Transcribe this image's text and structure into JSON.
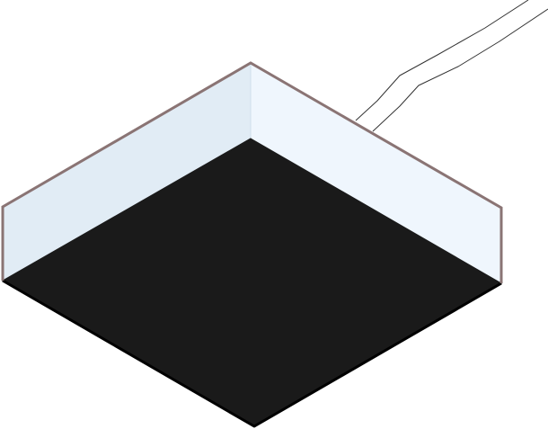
{
  "figure": {
    "background_color": "#ffffff",
    "colors": {
      "floor": "#1a1a1a",
      "floor_edge": "#000000",
      "wall_left": "#e1ecf5",
      "wall_right": "#eff6fd",
      "wall_outline": "#8a7474",
      "wall_inner_edge": "#d0dfec",
      "cable": "#333333"
    }
  }
}
